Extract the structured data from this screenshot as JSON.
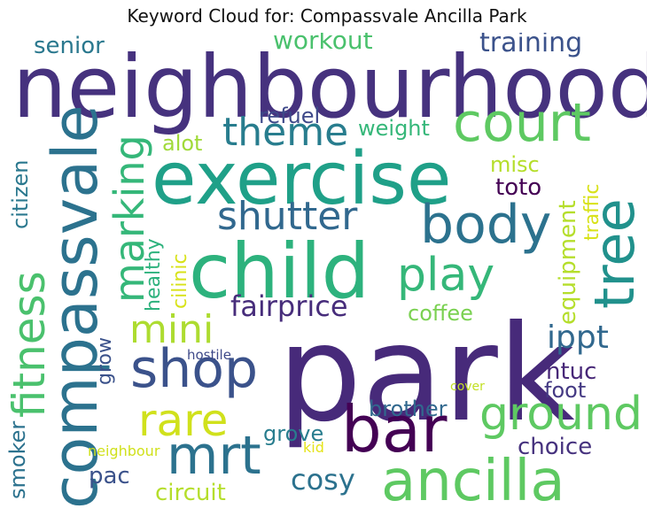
{
  "title": "Keyword Cloud for: Compassvale Ancilla Park",
  "words": [
    {
      "text": "neighbourhood",
      "color": "#46327e"
    },
    {
      "text": "park",
      "color": "#472a7a"
    },
    {
      "text": "exercise",
      "color": "#1fa088"
    },
    {
      "text": "child",
      "color": "#2db27d"
    },
    {
      "text": "compassvale",
      "color": "#2c728e"
    },
    {
      "text": "ancilla",
      "color": "#5ec962"
    },
    {
      "text": "bar",
      "color": "#440154"
    },
    {
      "text": "court",
      "color": "#5ec962"
    },
    {
      "text": "tree",
      "color": "#21918c"
    },
    {
      "text": "body",
      "color": "#2c728e"
    },
    {
      "text": "shop",
      "color": "#3b528b"
    },
    {
      "text": "mrt",
      "color": "#2c728e"
    },
    {
      "text": "shutter",
      "color": "#31688e"
    },
    {
      "text": "theme",
      "color": "#287d8e"
    },
    {
      "text": "play",
      "color": "#35b779"
    },
    {
      "text": "fitness",
      "color": "#4ac16d"
    },
    {
      "text": "marking",
      "color": "#35b779"
    },
    {
      "text": "ground",
      "color": "#5ec962"
    },
    {
      "text": "rare",
      "color": "#d0e11c"
    },
    {
      "text": "mini",
      "color": "#addc30"
    },
    {
      "text": "fairprice",
      "color": "#472d7b"
    },
    {
      "text": "ippt",
      "color": "#31688e"
    },
    {
      "text": "senior",
      "color": "#2a788e"
    },
    {
      "text": "workout",
      "color": "#4ac16d"
    },
    {
      "text": "training",
      "color": "#3b528b"
    },
    {
      "text": "refuel",
      "color": "#3e4989"
    },
    {
      "text": "weight",
      "color": "#35b779"
    },
    {
      "text": "alot",
      "color": "#a0da39"
    },
    {
      "text": "misc",
      "color": "#b5de2b"
    },
    {
      "text": "toto",
      "color": "#440154"
    },
    {
      "text": "traffic",
      "color": "#d8e219"
    },
    {
      "text": "equipment",
      "color": "#b5de2b"
    },
    {
      "text": "citizen",
      "color": "#2a788e"
    },
    {
      "text": "healthy",
      "color": "#2db27d"
    },
    {
      "text": "cilinic",
      "color": "#d8e219"
    },
    {
      "text": "coffee",
      "color": "#7ad151"
    },
    {
      "text": "grow",
      "color": "#3b528b"
    },
    {
      "text": "hostile",
      "color": "#3e4989"
    },
    {
      "text": "ntuc",
      "color": "#482878"
    },
    {
      "text": "foot",
      "color": "#443983"
    },
    {
      "text": "cover",
      "color": "#c2df23"
    },
    {
      "text": "brother",
      "color": "#31688e"
    },
    {
      "text": "smoker",
      "color": "#2c728e"
    },
    {
      "text": "grove",
      "color": "#287d8e"
    },
    {
      "text": "choice",
      "color": "#46327e"
    },
    {
      "text": "neighbour",
      "color": "#d0e11c"
    },
    {
      "text": "kid",
      "color": "#e5e419"
    },
    {
      "text": "pac",
      "color": "#3b528b"
    },
    {
      "text": "circuit",
      "color": "#b5de2b"
    },
    {
      "text": "cosy",
      "color": "#2c728e"
    }
  ]
}
